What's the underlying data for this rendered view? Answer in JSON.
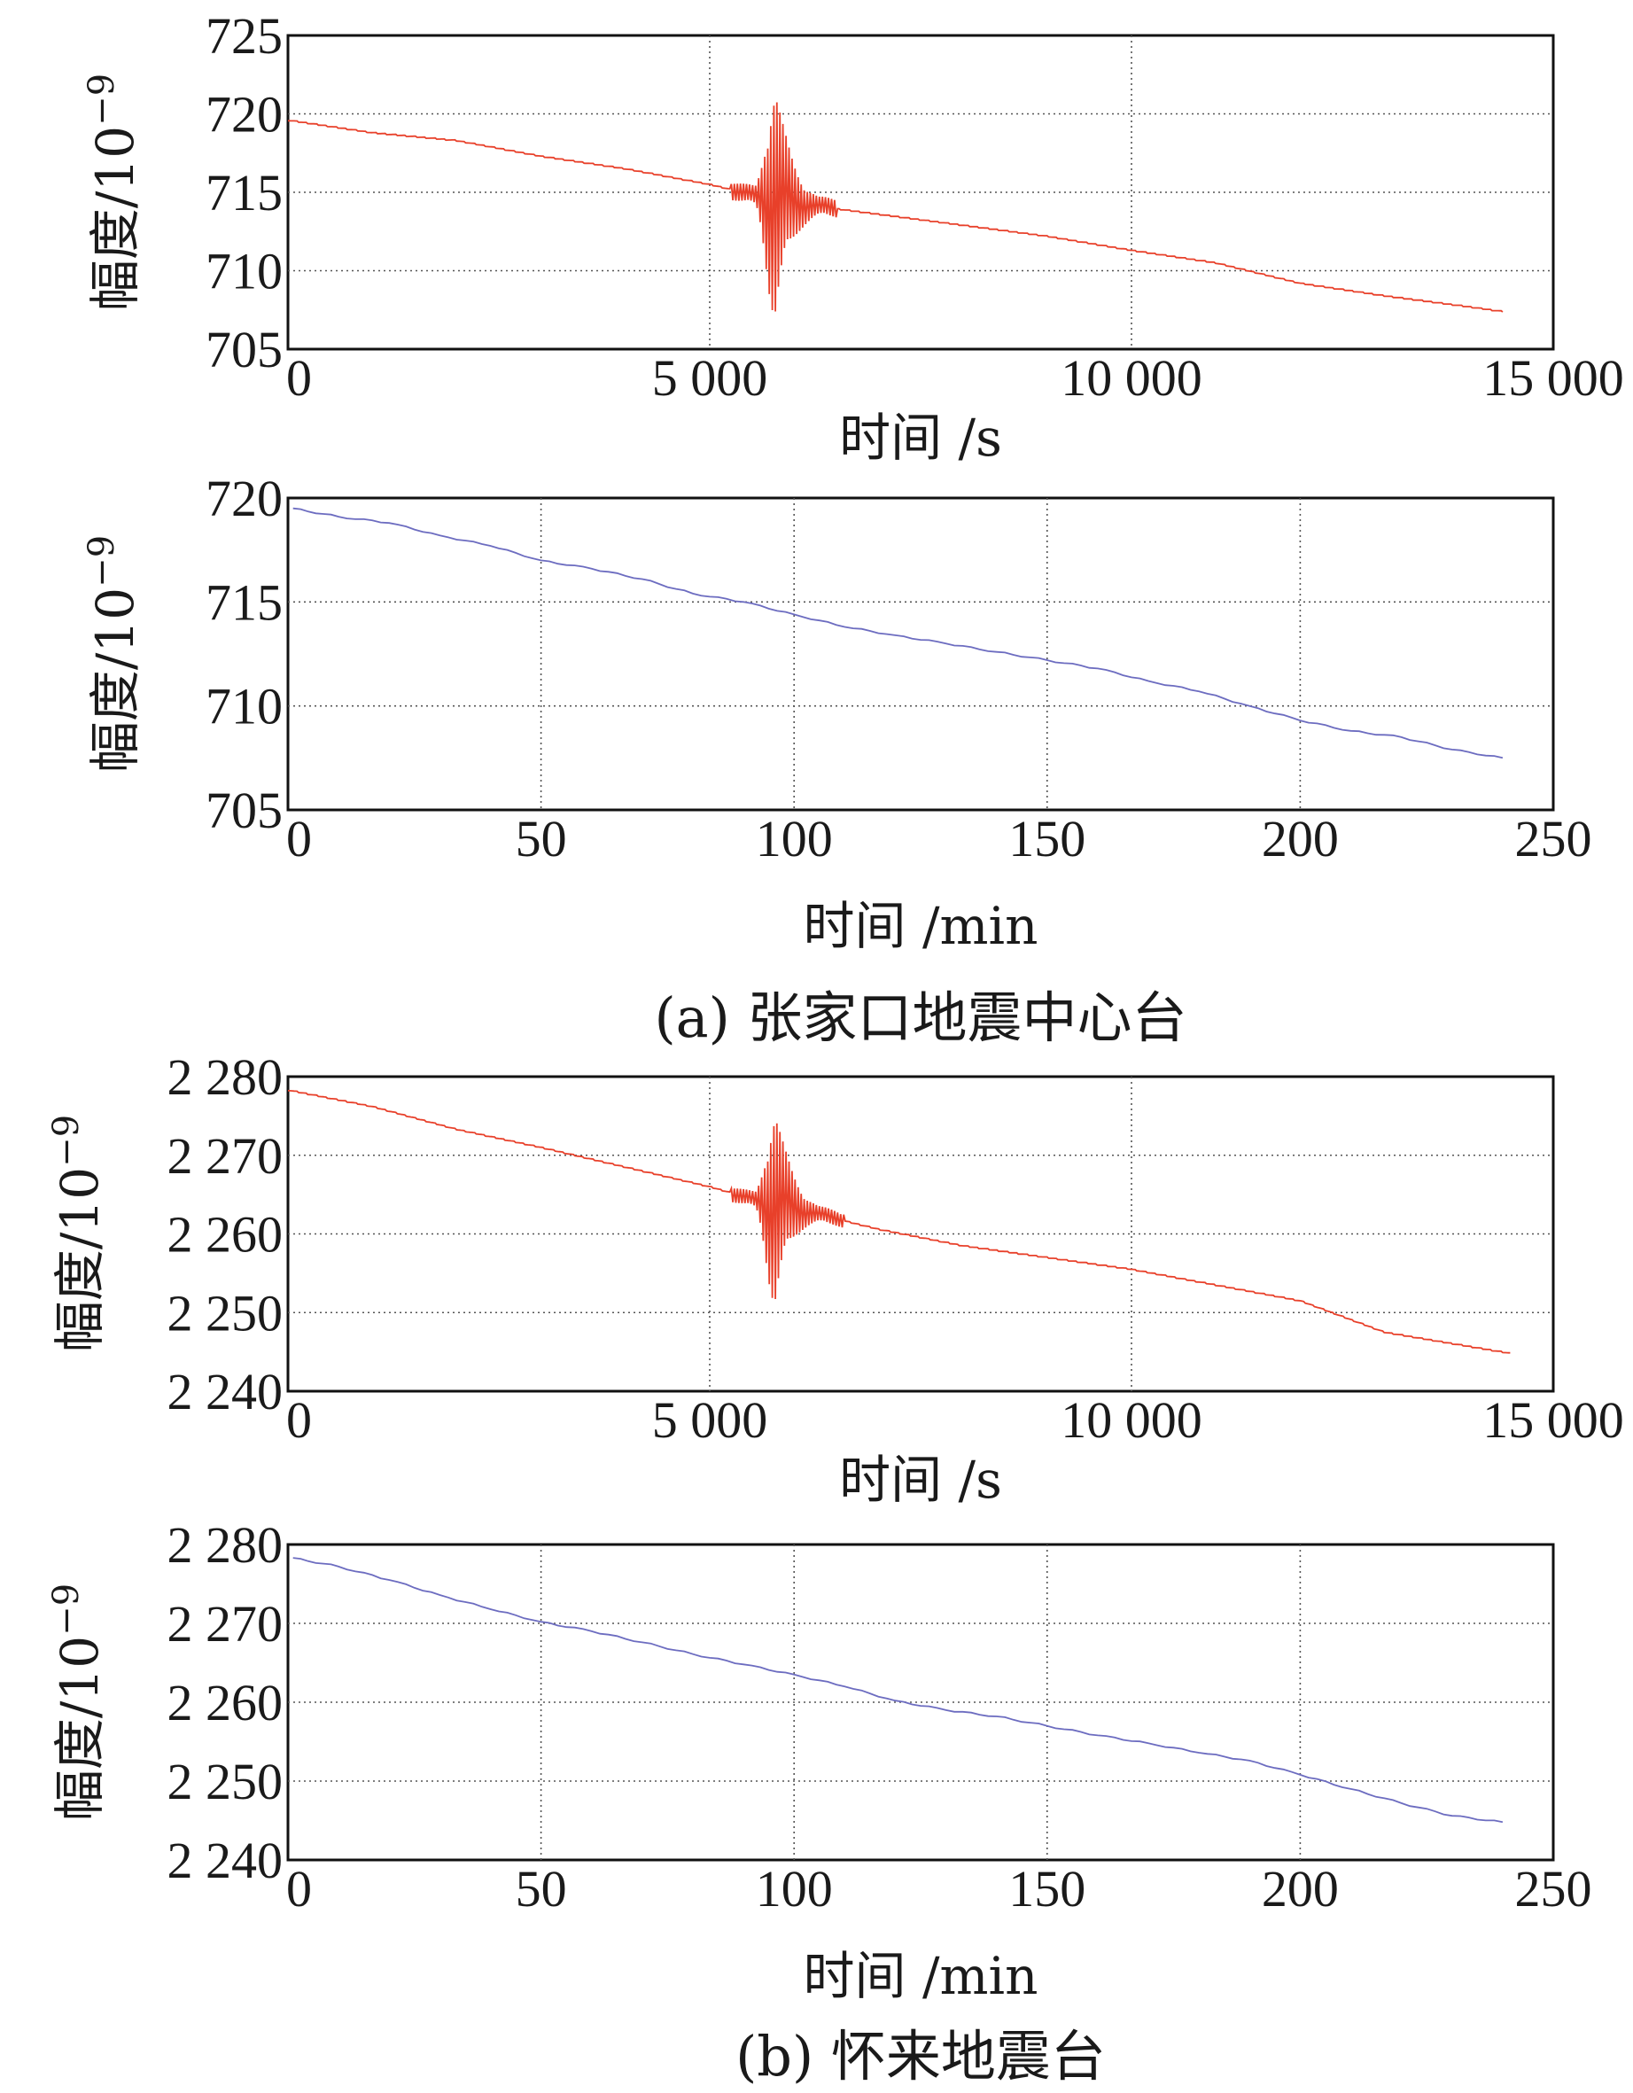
{
  "panels": [
    {
      "caption": "(a) 张家口地震中心台",
      "charts": [
        {
          "ylabel": "幅度/10",
          "ylabel_exp": "−9",
          "xlabel": "时间 /s",
          "yticks": [
            "705",
            "710",
            "715",
            "720",
            "725"
          ],
          "xticks": [
            "0",
            "5 000",
            "10 000",
            "15 000"
          ]
        },
        {
          "ylabel": "幅度/10",
          "ylabel_exp": "−9",
          "xlabel": "时间 /min",
          "yticks": [
            "705",
            "710",
            "715",
            "720"
          ],
          "xticks": [
            "0",
            "50",
            "100",
            "150",
            "200",
            "250"
          ]
        }
      ]
    },
    {
      "caption": "(b) 怀来地震台",
      "charts": [
        {
          "ylabel": "幅度/10",
          "ylabel_exp": "−9",
          "xlabel": "时间 /s",
          "yticks": [
            "2 240",
            "2 250",
            "2 260",
            "2 270",
            "2 280"
          ],
          "xticks": [
            "0",
            "5 000",
            "10 000",
            "15 000"
          ]
        },
        {
          "ylabel": "幅度/10",
          "ylabel_exp": "−9",
          "xlabel": "时间 /min",
          "yticks": [
            "2 240",
            "2 250",
            "2 260",
            "2 270",
            "2 280"
          ],
          "xticks": [
            "0",
            "50",
            "100",
            "150",
            "200",
            "250"
          ]
        }
      ]
    }
  ],
  "chart_data": [
    {
      "type": "line",
      "ylim": [
        705,
        725
      ],
      "xlim": [
        0,
        15000
      ],
      "grid": true,
      "color": "#e8402a",
      "trend": {
        "x": [
          0,
          1000,
          2000,
          3000,
          4000,
          5000,
          5400,
          6000,
          7000,
          8000,
          9000,
          10000,
          11000,
          12000,
          13000,
          14000,
          14400
        ],
        "y": [
          719.6,
          718.8,
          718.3,
          717.3,
          716.5,
          715.5,
          715.0,
          714.3,
          713.6,
          712.9,
          712.2,
          711.3,
          710.5,
          709.2,
          708.4,
          707.7,
          707.4
        ]
      },
      "burst": {
        "start": 5250,
        "peak": 5780,
        "end": 6500,
        "max": 722.2,
        "min": 706.8
      }
    },
    {
      "type": "line",
      "ylim": [
        705,
        720
      ],
      "xlim": [
        0,
        250
      ],
      "grid": true,
      "color": "#6c6cc0",
      "x": [
        1,
        10,
        20,
        30,
        40,
        50,
        60,
        70,
        80,
        90,
        100,
        110,
        120,
        130,
        140,
        150,
        160,
        170,
        180,
        190,
        200,
        210,
        220,
        230,
        240
      ],
      "y": [
        719.5,
        719.1,
        718.8,
        718.2,
        717.7,
        717.0,
        716.6,
        716.1,
        715.4,
        715.0,
        714.4,
        713.8,
        713.4,
        713.0,
        712.6,
        712.2,
        711.8,
        711.2,
        710.7,
        710.0,
        709.3,
        708.8,
        708.5,
        707.9,
        707.5
      ]
    },
    {
      "type": "line",
      "ylim": [
        2240,
        2280
      ],
      "xlim": [
        0,
        15000
      ],
      "grid": true,
      "color": "#e8402a",
      "trend": {
        "x": [
          0,
          1000,
          2000,
          3000,
          4000,
          5000,
          5400,
          6000,
          7000,
          8000,
          9000,
          10000,
          11000,
          12000,
          13000,
          14000,
          14500
        ],
        "y": [
          2278.3,
          2276.2,
          2273.3,
          2271.0,
          2268.5,
          2266.0,
          2264.8,
          2263.2,
          2260.6,
          2258.5,
          2257.0,
          2255.5,
          2253.5,
          2251.5,
          2247.5,
          2245.7,
          2244.8
        ]
      },
      "burst": {
        "start": 5250,
        "peak": 5780,
        "end": 6600,
        "max": 2276.5,
        "min": 2250.7
      }
    },
    {
      "type": "line",
      "ylim": [
        2240,
        2280
      ],
      "xlim": [
        0,
        250
      ],
      "grid": true,
      "color": "#6c6cc0",
      "x": [
        1,
        10,
        20,
        30,
        40,
        50,
        60,
        70,
        80,
        90,
        100,
        110,
        120,
        130,
        140,
        150,
        160,
        170,
        180,
        190,
        200,
        210,
        220,
        230,
        240
      ],
      "y": [
        2278.3,
        2277.2,
        2275.5,
        2273.6,
        2271.8,
        2270.2,
        2269.0,
        2267.6,
        2266.1,
        2264.8,
        2263.5,
        2262.0,
        2260.2,
        2259.0,
        2258.2,
        2257.0,
        2255.8,
        2254.8,
        2253.6,
        2252.6,
        2250.8,
        2249.0,
        2247.2,
        2245.6,
        2244.8
      ]
    }
  ]
}
